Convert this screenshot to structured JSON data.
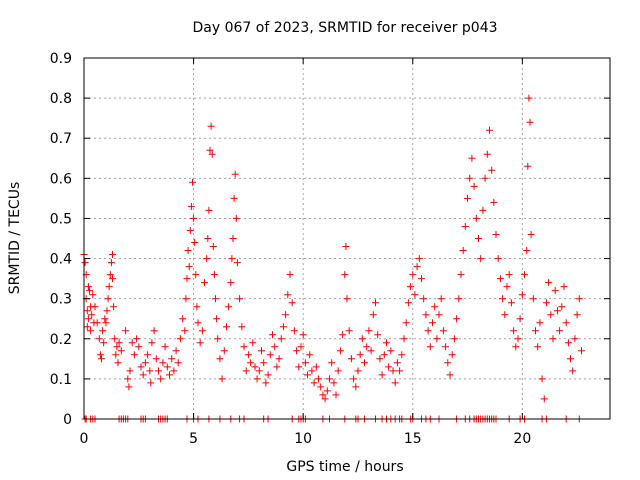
{
  "chart_data": {
    "type": "scatter",
    "title": "Day 067 of 2023, SRMTID for receiver p043",
    "xlabel": "GPS time / hours",
    "ylabel": "SRMTID / TECUs",
    "xlim": [
      0,
      24
    ],
    "ylim": [
      0,
      0.9
    ],
    "x_ticks": [
      0,
      5,
      10,
      15,
      20
    ],
    "x_tick_labels": [
      "0",
      "5",
      "10",
      "15",
      "20"
    ],
    "y_ticks": [
      0,
      0.1,
      0.2,
      0.3,
      0.4,
      0.5,
      0.6,
      0.7,
      0.8,
      0.9
    ],
    "y_tick_labels": [
      "0",
      "0.1",
      "0.2",
      "0.3",
      "0.4",
      "0.5",
      "0.6",
      "0.7",
      "0.8",
      "0.9"
    ],
    "grid": true,
    "marker": "+",
    "color": "#ff0000",
    "series": [
      {
        "name": "SRMTID",
        "points": [
          [
            0.0,
            0.41
          ],
          [
            0.05,
            0.39
          ],
          [
            0.1,
            0.36
          ],
          [
            0.1,
            0.3
          ],
          [
            0.15,
            0.27
          ],
          [
            0.15,
            0.23
          ],
          [
            0.2,
            0.33
          ],
          [
            0.2,
            0.25
          ],
          [
            0.25,
            0.32
          ],
          [
            0.3,
            0.28
          ],
          [
            0.3,
            0.22
          ],
          [
            0.35,
            0.26
          ],
          [
            0.4,
            0.31
          ],
          [
            0.45,
            0.24
          ],
          [
            0.5,
            0.28
          ],
          [
            0.6,
            0.24
          ],
          [
            0.7,
            0.2
          ],
          [
            0.75,
            0.16
          ],
          [
            0.8,
            0.15
          ],
          [
            0.85,
            0.22
          ],
          [
            0.9,
            0.19
          ],
          [
            0.95,
            0.25
          ],
          [
            1.0,
            0.24
          ],
          [
            1.05,
            0.27
          ],
          [
            1.1,
            0.3
          ],
          [
            1.15,
            0.33
          ],
          [
            1.2,
            0.36
          ],
          [
            1.25,
            0.39
          ],
          [
            1.3,
            0.41
          ],
          [
            1.3,
            0.35
          ],
          [
            1.35,
            0.28
          ],
          [
            1.4,
            0.2
          ],
          [
            1.45,
            0.16
          ],
          [
            1.5,
            0.18
          ],
          [
            1.55,
            0.14
          ],
          [
            1.6,
            0.19
          ],
          [
            1.7,
            0.17
          ],
          [
            1.9,
            0.22
          ],
          [
            2.0,
            0.1
          ],
          [
            2.05,
            0.08
          ],
          [
            2.1,
            0.12
          ],
          [
            2.2,
            0.19
          ],
          [
            2.3,
            0.16
          ],
          [
            2.4,
            0.2
          ],
          [
            2.5,
            0.18
          ],
          [
            2.6,
            0.13
          ],
          [
            2.7,
            0.11
          ],
          [
            2.8,
            0.14
          ],
          [
            2.9,
            0.16
          ],
          [
            3.0,
            0.12
          ],
          [
            3.05,
            0.09
          ],
          [
            3.1,
            0.19
          ],
          [
            3.2,
            0.22
          ],
          [
            3.3,
            0.15
          ],
          [
            3.4,
            0.12
          ],
          [
            3.5,
            0.1
          ],
          [
            3.6,
            0.14
          ],
          [
            3.7,
            0.18
          ],
          [
            3.8,
            0.13
          ],
          [
            3.9,
            0.11
          ],
          [
            4.0,
            0.15
          ],
          [
            4.1,
            0.12
          ],
          [
            4.2,
            0.17
          ],
          [
            4.3,
            0.14
          ],
          [
            4.4,
            0.2
          ],
          [
            4.5,
            0.25
          ],
          [
            4.6,
            0.22
          ],
          [
            4.65,
            0.3
          ],
          [
            4.7,
            0.35
          ],
          [
            4.75,
            0.42
          ],
          [
            4.8,
            0.38
          ],
          [
            4.85,
            0.47
          ],
          [
            4.9,
            0.53
          ],
          [
            4.95,
            0.59
          ],
          [
            5.0,
            0.5
          ],
          [
            5.05,
            0.44
          ],
          [
            5.1,
            0.36
          ],
          [
            5.15,
            0.28
          ],
          [
            5.2,
            0.24
          ],
          [
            5.3,
            0.19
          ],
          [
            5.4,
            0.22
          ],
          [
            5.5,
            0.34
          ],
          [
            5.6,
            0.4
          ],
          [
            5.65,
            0.45
          ],
          [
            5.7,
            0.52
          ],
          [
            5.75,
            0.67
          ],
          [
            5.8,
            0.73
          ],
          [
            5.85,
            0.66
          ],
          [
            5.9,
            0.43
          ],
          [
            5.95,
            0.36
          ],
          [
            6.0,
            0.3
          ],
          [
            6.05,
            0.25
          ],
          [
            6.1,
            0.2
          ],
          [
            6.2,
            0.15
          ],
          [
            6.3,
            0.1
          ],
          [
            6.4,
            0.17
          ],
          [
            6.5,
            0.23
          ],
          [
            6.6,
            0.28
          ],
          [
            6.7,
            0.34
          ],
          [
            6.75,
            0.4
          ],
          [
            6.8,
            0.45
          ],
          [
            6.85,
            0.55
          ],
          [
            6.9,
            0.61
          ],
          [
            6.95,
            0.5
          ],
          [
            7.0,
            0.39
          ],
          [
            7.1,
            0.3
          ],
          [
            7.2,
            0.23
          ],
          [
            7.3,
            0.18
          ],
          [
            7.4,
            0.12
          ],
          [
            7.5,
            0.16
          ],
          [
            7.6,
            0.14
          ],
          [
            7.7,
            0.19
          ],
          [
            7.8,
            0.13
          ],
          [
            7.9,
            0.1
          ],
          [
            8.0,
            0.12
          ],
          [
            8.1,
            0.17
          ],
          [
            8.2,
            0.14
          ],
          [
            8.3,
            0.09
          ],
          [
            8.4,
            0.11
          ],
          [
            8.5,
            0.16
          ],
          [
            8.6,
            0.21
          ],
          [
            8.7,
            0.18
          ],
          [
            8.8,
            0.13
          ],
          [
            8.9,
            0.15
          ],
          [
            9.0,
            0.2
          ],
          [
            9.1,
            0.23
          ],
          [
            9.2,
            0.26
          ],
          [
            9.3,
            0.31
          ],
          [
            9.4,
            0.36
          ],
          [
            9.5,
            0.29
          ],
          [
            9.6,
            0.22
          ],
          [
            9.7,
            0.17
          ],
          [
            9.8,
            0.13
          ],
          [
            9.9,
            0.18
          ],
          [
            10.0,
            0.21
          ],
          [
            10.1,
            0.14
          ],
          [
            10.2,
            0.11
          ],
          [
            10.3,
            0.16
          ],
          [
            10.4,
            0.12
          ],
          [
            10.5,
            0.09
          ],
          [
            10.6,
            0.13
          ],
          [
            10.7,
            0.1
          ],
          [
            10.8,
            0.08
          ],
          [
            10.9,
            0.06
          ],
          [
            11.0,
            0.05
          ],
          [
            11.1,
            0.07
          ],
          [
            11.2,
            0.1
          ],
          [
            11.3,
            0.14
          ],
          [
            11.4,
            0.09
          ],
          [
            11.5,
            0.06
          ],
          [
            11.6,
            0.12
          ],
          [
            11.7,
            0.17
          ],
          [
            11.8,
            0.21
          ],
          [
            11.9,
            0.36
          ],
          [
            11.95,
            0.43
          ],
          [
            12.0,
            0.3
          ],
          [
            12.1,
            0.22
          ],
          [
            12.2,
            0.15
          ],
          [
            12.3,
            0.1
          ],
          [
            12.4,
            0.08
          ],
          [
            12.5,
            0.12
          ],
          [
            12.6,
            0.16
          ],
          [
            12.7,
            0.2
          ],
          [
            12.8,
            0.14
          ],
          [
            12.9,
            0.18
          ],
          [
            13.0,
            0.22
          ],
          [
            13.1,
            0.17
          ],
          [
            13.2,
            0.26
          ],
          [
            13.3,
            0.29
          ],
          [
            13.4,
            0.21
          ],
          [
            13.5,
            0.15
          ],
          [
            13.6,
            0.11
          ],
          [
            13.7,
            0.16
          ],
          [
            13.8,
            0.19
          ],
          [
            13.9,
            0.13
          ],
          [
            14.0,
            0.17
          ],
          [
            14.1,
            0.12
          ],
          [
            14.2,
            0.09
          ],
          [
            14.3,
            0.14
          ],
          [
            14.4,
            0.12
          ],
          [
            14.5,
            0.16
          ],
          [
            14.6,
            0.2
          ],
          [
            14.7,
            0.24
          ],
          [
            14.8,
            0.29
          ],
          [
            14.9,
            0.33
          ],
          [
            15.0,
            0.36
          ],
          [
            15.1,
            0.31
          ],
          [
            15.2,
            0.38
          ],
          [
            15.3,
            0.4
          ],
          [
            15.4,
            0.35
          ],
          [
            15.5,
            0.3
          ],
          [
            15.6,
            0.26
          ],
          [
            15.7,
            0.22
          ],
          [
            15.8,
            0.18
          ],
          [
            15.9,
            0.24
          ],
          [
            16.0,
            0.28
          ],
          [
            16.1,
            0.2
          ],
          [
            16.2,
            0.26
          ],
          [
            16.3,
            0.3
          ],
          [
            16.4,
            0.22
          ],
          [
            16.5,
            0.18
          ],
          [
            16.6,
            0.14
          ],
          [
            16.7,
            0.11
          ],
          [
            16.8,
            0.16
          ],
          [
            16.9,
            0.2
          ],
          [
            17.0,
            0.25
          ],
          [
            17.1,
            0.3
          ],
          [
            17.2,
            0.36
          ],
          [
            17.3,
            0.42
          ],
          [
            17.4,
            0.48
          ],
          [
            17.5,
            0.55
          ],
          [
            17.6,
            0.6
          ],
          [
            17.7,
            0.65
          ],
          [
            17.8,
            0.58
          ],
          [
            17.9,
            0.5
          ],
          [
            18.0,
            0.45
          ],
          [
            18.1,
            0.4
          ],
          [
            18.2,
            0.52
          ],
          [
            18.3,
            0.6
          ],
          [
            18.4,
            0.66
          ],
          [
            18.5,
            0.72
          ],
          [
            18.6,
            0.62
          ],
          [
            18.7,
            0.54
          ],
          [
            18.8,
            0.46
          ],
          [
            18.9,
            0.4
          ],
          [
            19.0,
            0.35
          ],
          [
            19.1,
            0.3
          ],
          [
            19.2,
            0.26
          ],
          [
            19.3,
            0.33
          ],
          [
            19.4,
            0.36
          ],
          [
            19.5,
            0.29
          ],
          [
            19.6,
            0.22
          ],
          [
            19.7,
            0.18
          ],
          [
            19.8,
            0.2
          ],
          [
            19.9,
            0.25
          ],
          [
            20.0,
            0.31
          ],
          [
            20.1,
            0.36
          ],
          [
            20.2,
            0.42
          ],
          [
            20.25,
            0.63
          ],
          [
            20.3,
            0.8
          ],
          [
            20.35,
            0.74
          ],
          [
            20.4,
            0.46
          ],
          [
            20.5,
            0.3
          ],
          [
            20.6,
            0.22
          ],
          [
            20.7,
            0.18
          ],
          [
            20.8,
            0.24
          ],
          [
            20.9,
            0.1
          ],
          [
            21.0,
            0.05
          ],
          [
            21.1,
            0.29
          ],
          [
            21.2,
            0.34
          ],
          [
            21.3,
            0.26
          ],
          [
            21.4,
            0.2
          ],
          [
            21.5,
            0.32
          ],
          [
            21.6,
            0.27
          ],
          [
            21.7,
            0.22
          ],
          [
            21.8,
            0.28
          ],
          [
            21.9,
            0.33
          ],
          [
            22.0,
            0.24
          ],
          [
            22.1,
            0.19
          ],
          [
            22.2,
            0.15
          ],
          [
            22.3,
            0.12
          ],
          [
            22.4,
            0.2
          ],
          [
            22.5,
            0.26
          ],
          [
            22.6,
            0.3
          ],
          [
            22.7,
            0.17
          ]
        ],
        "zero_points_x": [
          0.05,
          0.1,
          0.3,
          0.4,
          0.5,
          1.6,
          1.7,
          1.8,
          1.9,
          2.0,
          2.6,
          2.7,
          2.8,
          3.4,
          3.5,
          3.6,
          3.7,
          3.8,
          4.7,
          5.0,
          5.2,
          5.7,
          6.2,
          6.7,
          7.1,
          7.3,
          8.2,
          8.4,
          9.5,
          9.8,
          9.9,
          10.0,
          10.1,
          10.9,
          11.2,
          11.9,
          12.4,
          12.5,
          12.8,
          13.3,
          13.6,
          13.8,
          14.0,
          14.2,
          14.4,
          14.5,
          14.9,
          15.0,
          15.4,
          15.6,
          15.8,
          16.2,
          17.0,
          17.4,
          17.6,
          17.8,
          17.9,
          18.0,
          18.1,
          18.2,
          18.3,
          18.4,
          18.5,
          18.6,
          18.7,
          18.8,
          19.4,
          19.9,
          20.1,
          20.9,
          21.1,
          22.0,
          22.6
        ]
      }
    ]
  }
}
